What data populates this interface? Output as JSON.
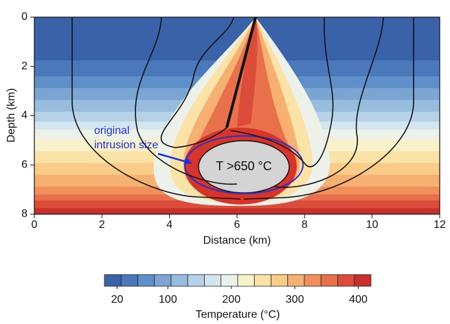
{
  "chart_data": {
    "type": "contour",
    "x_label": "Distance (km)",
    "y_label": "Depth (km)",
    "xlim": [
      0,
      12
    ],
    "xticks": [
      0,
      2,
      4,
      6,
      8,
      10,
      12
    ],
    "ylim": [
      0,
      8
    ],
    "yticks": [
      0,
      2,
      4,
      6,
      8
    ],
    "y_inverted": true,
    "colors": [
      "#3a62a8",
      "#4a78bb",
      "#5f8fc8",
      "#7ba6d3",
      "#98bcde",
      "#b6d2e8",
      "#d3e5ef",
      "#ecf2ea",
      "#f8f2cc",
      "#fbe3a8",
      "#f9cc88",
      "#f6b071",
      "#f1905d",
      "#e8704b",
      "#dc4c3b",
      "#c9302c"
    ],
    "colorbar": {
      "label": "Temperature (°C)",
      "lim": [
        0,
        420
      ],
      "ticks": [
        20,
        100,
        200,
        300,
        400
      ]
    },
    "annotations": {
      "intrusion": "T >650 °C",
      "original_line1": "original",
      "original_line2": "intrusion size"
    }
  }
}
